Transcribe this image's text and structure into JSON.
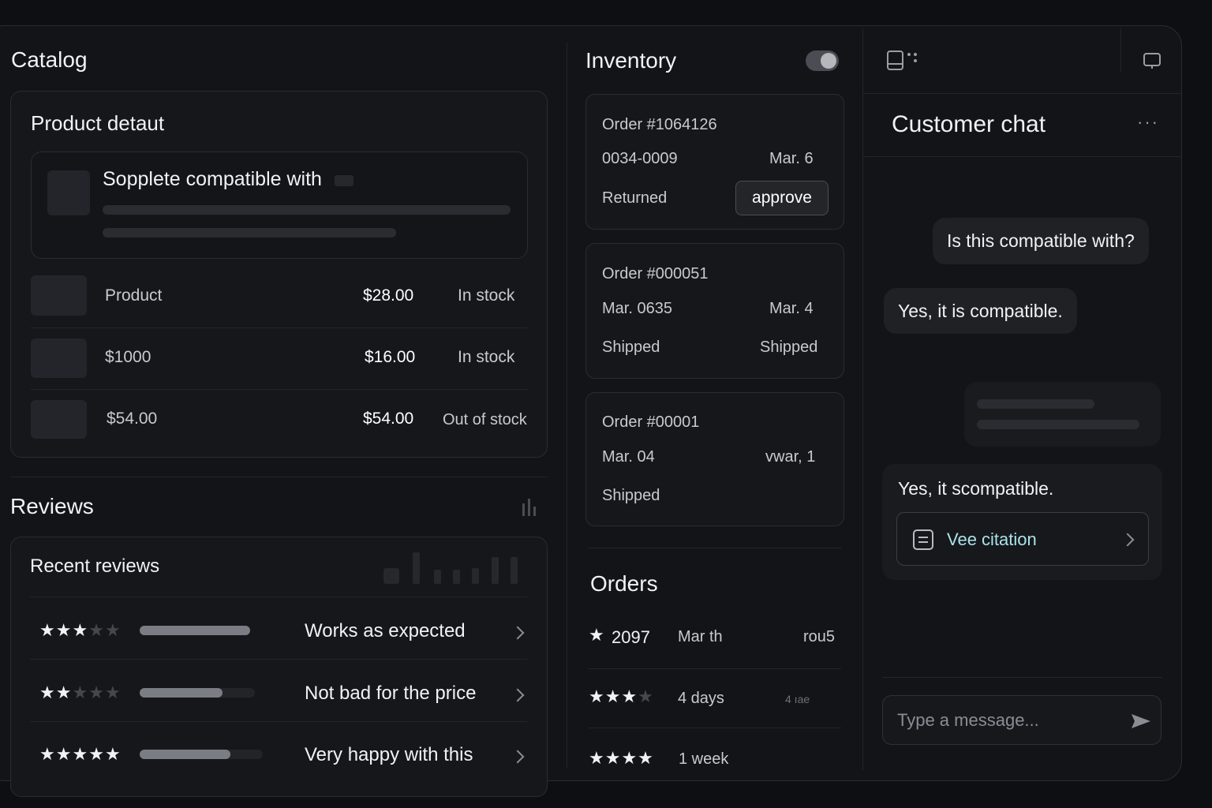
{
  "catalog": {
    "title": "Catalog",
    "product_detail": {
      "title": "Product detaut",
      "feature_text": "Sopplete compatible with"
    },
    "rows": [
      {
        "name": "Product",
        "price": "$28.00",
        "stock": "In stock"
      },
      {
        "name": "$1000",
        "price": "$16.00",
        "stock": "In stock"
      },
      {
        "name": "$54.00",
        "price": "$54.00",
        "stock": "Out of stock"
      }
    ]
  },
  "reviews": {
    "title": "Reviews",
    "recent_title": "Recent reviews",
    "items": [
      {
        "stars": 3,
        "bar_level": 1.0,
        "text": "Works as expected"
      },
      {
        "stars": 2,
        "bar_level": 0.72,
        "text": "Not bad for the price"
      },
      {
        "stars": 5,
        "bar_level": 0.74,
        "text": "Very happy with this"
      }
    ]
  },
  "inventory": {
    "title": "Inventory",
    "toggle_on": true,
    "orders": [
      {
        "id": "Order #1064126",
        "line1_left": "0034-0009",
        "line1_right": "Mar. 6",
        "status": "Returned",
        "action": "approve"
      },
      {
        "id": "Order #000051",
        "line1_left": "Mar. 0635",
        "line1_right": "Mar. 4",
        "status": "Shipped",
        "status_right": "Shipped"
      },
      {
        "id": "Order #00001",
        "line1_left": "Mar. 04",
        "line1_right": "vwar, 1",
        "status": "Shipped"
      }
    ]
  },
  "orders": {
    "title": "Orders",
    "rows": [
      {
        "stars": "★",
        "value": "2097",
        "when": "Mar th",
        "extra": "rou5"
      },
      {
        "stars": "★★★",
        "value": "",
        "when": "4 days",
        "extra": "4 ıae"
      },
      {
        "stars": "★★★★",
        "value": "",
        "when": "1 week",
        "extra": ""
      }
    ]
  },
  "chat": {
    "title": "Customer chat",
    "messages": [
      {
        "from": "user",
        "text": "Is this compatible with?"
      },
      {
        "from": "agent",
        "text": "Yes, it is compatible."
      },
      {
        "from": "agent",
        "text": "Yes, it scompatible."
      }
    ],
    "citation_label": "Vee citation",
    "input_placeholder": "Type a message...",
    "menu_label": "···"
  },
  "colors": {
    "accent_citation": "#a9e3ea",
    "background": "#131417"
  }
}
